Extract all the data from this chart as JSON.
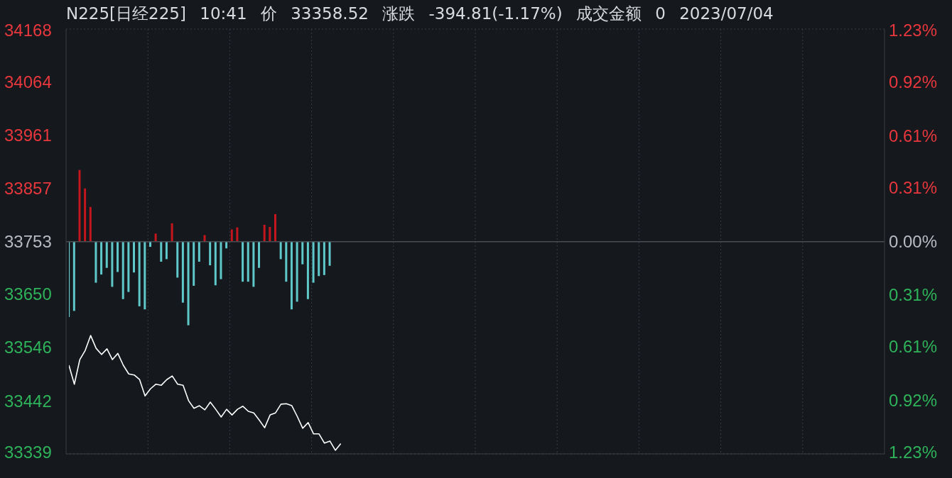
{
  "chart_data": {
    "type": "line",
    "title": "N225[日经225] 10:41 价 33358.52 涨跌 -394.81(-1.17%) 成交金额 0 2023/07/04",
    "categories": [
      null,
      null,
      null,
      null,
      null,
      null,
      null,
      null,
      null,
      null,
      null,
      null,
      null,
      null,
      null,
      null,
      null,
      null,
      null,
      null,
      null,
      null,
      null,
      null,
      null,
      null,
      null,
      null,
      null,
      null,
      null,
      null,
      null,
      null,
      null,
      null,
      null,
      null,
      null,
      null,
      null,
      null,
      null,
      null,
      null,
      null,
      null,
      null,
      null,
      null,
      null,
      null,
      null,
      null,
      null,
      null,
      null,
      null,
      null,
      null,
      null,
      null,
      null,
      null,
      null,
      null,
      null,
      null,
      null,
      null,
      null,
      null,
      null,
      null,
      null,
      null,
      null,
      null,
      null,
      null,
      null,
      null,
      null,
      null,
      null,
      null,
      null,
      null,
      null,
      null,
      null,
      null,
      null,
      null,
      null,
      null,
      null,
      null,
      null,
      null,
      null,
      null,
      null,
      null,
      null,
      null,
      null,
      null,
      null,
      null,
      null,
      null,
      null,
      null,
      null,
      null,
      null,
      null,
      null,
      null,
      null,
      null,
      null,
      null,
      null,
      null,
      null,
      null,
      null,
      null,
      null,
      null,
      null,
      null,
      null,
      null,
      null,
      null,
      null,
      null,
      null,
      null,
      null,
      null,
      null,
      null,
      null,
      null,
      null,
      null,
      null
    ],
    "series": [
      {
        "type": "bar",
        "values": [
          -147,
          -135,
          140,
          104,
          68,
          -80,
          -64,
          -51,
          -88,
          -59,
          -112,
          -98,
          -60,
          -126,
          -132,
          -10,
          16,
          -39,
          -34,
          36,
          -70,
          -119,
          -163,
          -86,
          -39,
          13,
          -46,
          -85,
          -73,
          -13,
          24,
          28,
          -78,
          -78,
          -88,
          -51,
          33,
          29,
          54,
          -34,
          -78,
          -132,
          -117,
          -44,
          -112,
          -80,
          -67,
          -65,
          -47,
          null,
          null,
          null,
          null,
          null,
          null,
          null,
          null,
          null,
          null,
          null,
          null,
          null,
          null,
          null,
          null,
          null,
          null,
          null,
          null,
          null,
          null,
          null,
          null,
          null,
          null,
          null,
          null,
          null,
          null,
          null,
          null,
          null,
          null,
          null,
          null,
          null,
          null,
          null,
          null,
          null,
          null,
          null,
          null,
          null,
          null,
          null,
          null,
          null,
          null,
          null,
          null,
          null,
          null,
          null,
          null,
          null,
          null,
          null,
          null,
          null,
          null,
          null,
          null,
          null,
          null,
          null,
          null,
          null,
          null,
          null,
          null,
          null,
          null,
          null,
          null,
          null,
          null,
          null,
          null,
          null,
          null,
          null,
          null,
          null,
          null,
          null,
          null,
          null,
          null,
          null,
          null,
          null,
          null,
          null,
          null,
          null,
          null,
          null,
          null,
          null,
          null
        ],
        "base": [
          33753,
          33753,
          33753,
          33753,
          33753,
          33753,
          33753,
          33753,
          33753,
          33753,
          33753,
          33753,
          33753,
          33753,
          33753,
          33753,
          33753,
          33753,
          33753,
          33753,
          33753,
          33753,
          33753,
          33753,
          33753,
          33753,
          33753,
          33753,
          33753,
          33753,
          33753,
          33753,
          33753,
          33753,
          33753,
          33753,
          33753,
          33753,
          33753,
          33753,
          33753,
          33753,
          33753,
          33753,
          33753,
          33753,
          33753,
          33753,
          33753,
          null,
          null,
          null,
          null,
          null,
          null,
          null,
          null,
          null,
          null,
          null,
          null,
          null,
          null,
          null,
          null,
          null,
          null,
          null,
          null,
          null,
          null,
          null,
          null,
          null,
          null,
          null,
          null,
          null,
          null,
          null,
          null,
          null,
          null,
          null,
          null,
          null,
          null,
          null,
          null,
          null,
          null,
          null,
          null,
          null,
          null,
          null,
          null,
          null,
          null,
          null,
          null,
          null,
          null,
          null,
          null,
          null,
          null,
          null,
          null,
          null,
          null,
          null,
          null,
          null,
          null,
          null,
          null,
          null,
          null,
          null,
          null,
          null,
          null,
          null,
          null,
          null,
          null,
          null,
          null,
          null,
          null,
          null,
          null,
          null,
          null,
          null,
          null,
          null,
          null,
          null,
          null,
          null,
          null,
          null,
          null,
          null,
          null,
          null,
          null,
          null,
          null
        ],
        "colors": [
          "#5fc8ca",
          "#5fc8ca",
          "#c4161c",
          "#c4161c",
          "#c4161c",
          "#5fc8ca",
          "#5fc8ca",
          "#5fc8ca",
          "#5fc8ca",
          "#5fc8ca",
          "#5fc8ca",
          "#5fc8ca",
          "#5fc8ca",
          "#5fc8ca",
          "#5fc8ca",
          "#5fc8ca",
          "#c4161c",
          "#5fc8ca",
          "#5fc8ca",
          "#c4161c",
          "#5fc8ca",
          "#5fc8ca",
          "#5fc8ca",
          "#5fc8ca",
          "#5fc8ca",
          "#c4161c",
          "#5fc8ca",
          "#5fc8ca",
          "#5fc8ca",
          "#5fc8ca",
          "#c4161c",
          "#c4161c",
          "#5fc8ca",
          "#5fc8ca",
          "#5fc8ca",
          "#5fc8ca",
          "#c4161c",
          "#c4161c",
          "#c4161c",
          "#5fc8ca",
          "#5fc8ca",
          "#5fc8ca",
          "#5fc8ca",
          "#5fc8ca",
          "#5fc8ca",
          "#5fc8ca",
          "#5fc8ca",
          "#5fc8ca",
          "#5fc8ca",
          null,
          null,
          null,
          null,
          null,
          null,
          null,
          null,
          null,
          null,
          null,
          null,
          null,
          null,
          null,
          null,
          null,
          null,
          null,
          null,
          null,
          null,
          null,
          null,
          null,
          null,
          null,
          null,
          null,
          null,
          null,
          null,
          null,
          null,
          null,
          null,
          null,
          null,
          null,
          null,
          null,
          null,
          null,
          null,
          null,
          null,
          null,
          null,
          null,
          null,
          null,
          null,
          null,
          null,
          null,
          null,
          null,
          null,
          null,
          null,
          null,
          null,
          null,
          null,
          null,
          null,
          null,
          null,
          null,
          null,
          null,
          null,
          null,
          null,
          null,
          null,
          null,
          null,
          null,
          null,
          null,
          null,
          null,
          null,
          null,
          null,
          null,
          null,
          null,
          null,
          null,
          null,
          null,
          null,
          null,
          null,
          null,
          null,
          null,
          null,
          null,
          null
        ]
      },
      {
        "color": "#ffffff",
        "values": [
          33512,
          33475,
          33523,
          33541,
          33570,
          33545,
          33533,
          33544,
          33523,
          33535,
          33512,
          33495,
          33493,
          33484,
          33452,
          33466,
          33475,
          33473,
          33484,
          33491,
          33475,
          33473,
          33443,
          33428,
          33433,
          33425,
          33440,
          33426,
          33411,
          33426,
          33415,
          33426,
          33432,
          33422,
          33419,
          33405,
          33390,
          33415,
          33419,
          33436,
          33437,
          33433,
          33412,
          33389,
          33400,
          33378,
          33378,
          33360,
          33364,
          33346,
          33359,
          null,
          null,
          null,
          null,
          null,
          null,
          null,
          null,
          null,
          null,
          null,
          null,
          null,
          null,
          null,
          null,
          null,
          null,
          null,
          null,
          null,
          null,
          null,
          null,
          null,
          null,
          null,
          null,
          null,
          null,
          null,
          null,
          null,
          null,
          null,
          null,
          null,
          null,
          null,
          null,
          null,
          null,
          null,
          null,
          null,
          null,
          null,
          null,
          null,
          null,
          null,
          null,
          null,
          null,
          null,
          null,
          null,
          null,
          null,
          null,
          null,
          null,
          null,
          null,
          null,
          null,
          null,
          null,
          null,
          null,
          null,
          null,
          null,
          null,
          null,
          null,
          null,
          null,
          null,
          null,
          null,
          null,
          null,
          null,
          null,
          null,
          null,
          null,
          null,
          null,
          null,
          null,
          null,
          null,
          null,
          null,
          null,
          null,
          null,
          null
        ]
      }
    ],
    "ylim": [
      33339,
      34168
    ],
    "yticks": [
      33339,
      33442,
      33546,
      33650,
      33753,
      33857,
      33961,
      34064,
      34168
    ],
    "y2lim": [
      -1.23,
      1.23
    ],
    "y2ticks": [
      {
        "value": -1.23,
        "label": "1.23%"
      },
      {
        "value": -0.92,
        "label": "0.92%"
      },
      {
        "value": -0.61,
        "label": "0.61%"
      },
      {
        "value": -0.31,
        "label": "0.31%"
      },
      {
        "value": 0,
        "label": "0.00%"
      },
      {
        "value": 0.31,
        "label": "0.31%"
      },
      {
        "value": 0.61,
        "label": "0.61%"
      },
      {
        "value": 0.92,
        "label": "0.92%"
      },
      {
        "value": 1.23,
        "label": "1.23%"
      }
    ],
    "ref_lines": [
      {
        "axis": "y",
        "value": 33753,
        "color": "#4a4d52"
      }
    ],
    "grid": true,
    "tick_labels": "y",
    "marker": "none",
    "line_style": "solid"
  }
}
